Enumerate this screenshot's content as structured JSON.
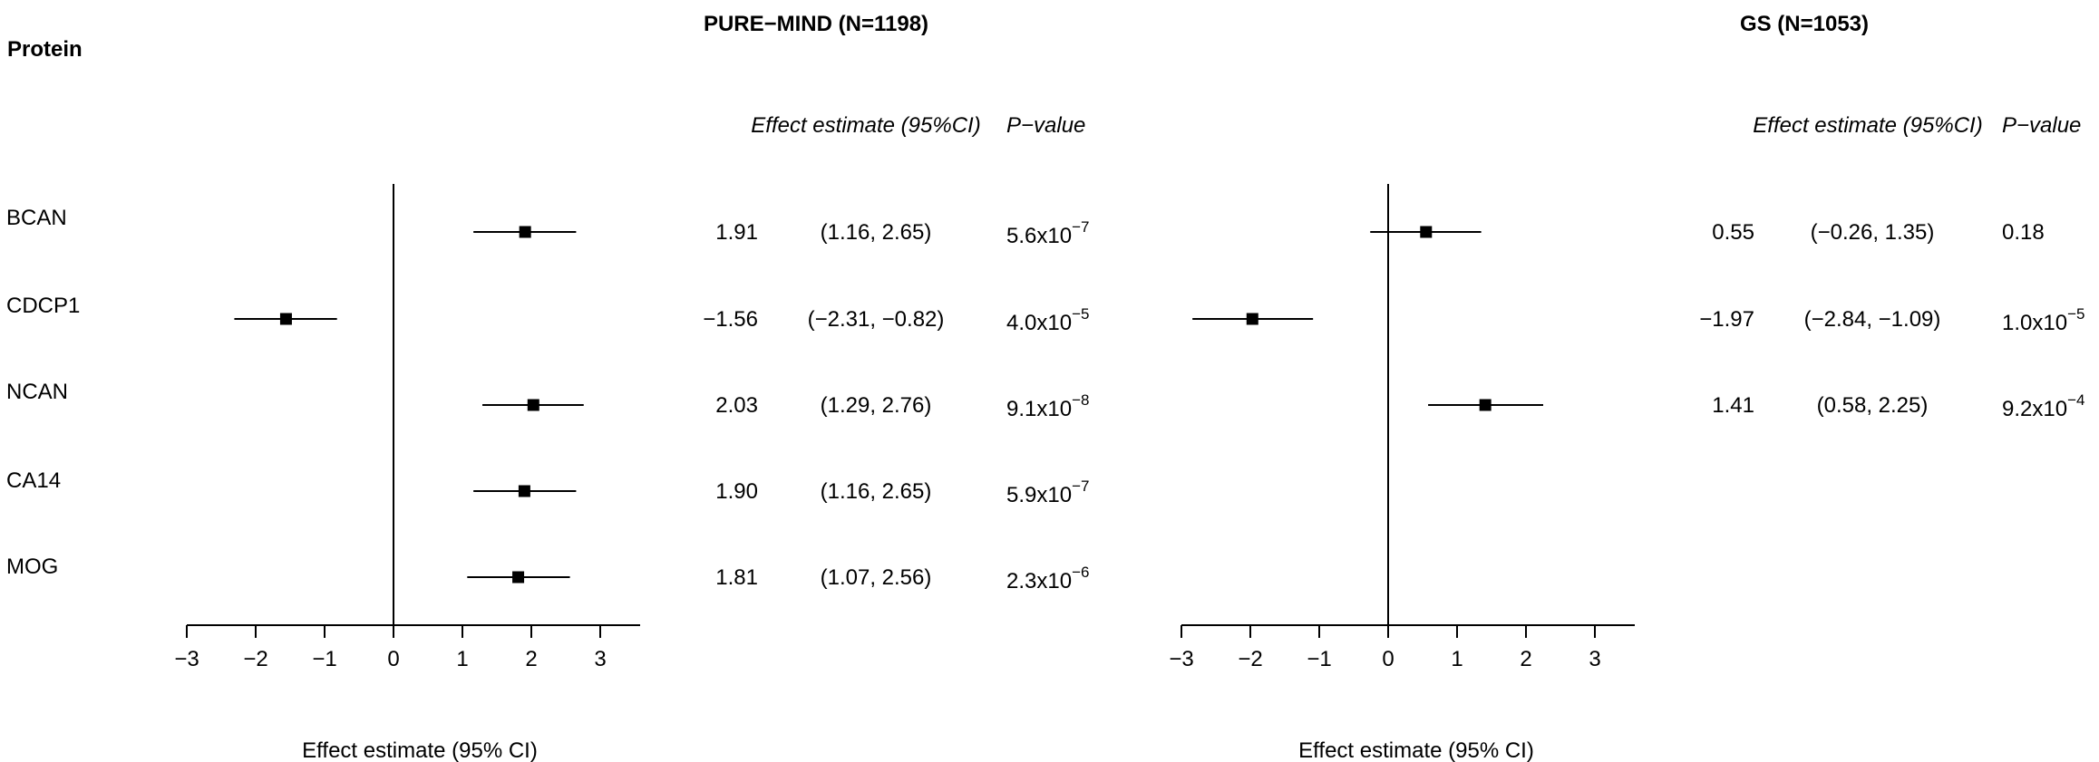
{
  "chart_data": {
    "type": "forest",
    "row_header": "Protein",
    "proteins": [
      "BCAN",
      "CDCP1",
      "NCAN",
      "CA14",
      "MOG"
    ],
    "xlim": [
      -3,
      3.5
    ],
    "ticks": [
      -3,
      -2,
      -1,
      0,
      1,
      2,
      3
    ],
    "tick_labels": [
      "−3",
      "−2",
      "−1",
      "0",
      "1",
      "2",
      "3"
    ],
    "reference_line": 0,
    "panels": [
      {
        "title": "PURE−MIND (N=1198)",
        "est_header": "Effect estimate (95%CI)",
        "p_header": "P−value",
        "xlabel": "Effect estimate (95% CI)",
        "rows": [
          {
            "protein": "BCAN",
            "est": 1.91,
            "lo": 1.16,
            "hi": 2.65,
            "est_text": "1.91",
            "ci_text": "(1.16, 2.65)",
            "p_mant": "5.6x10",
            "p_exp": "−7"
          },
          {
            "protein": "CDCP1",
            "est": -1.56,
            "lo": -2.31,
            "hi": -0.82,
            "est_text": "−1.56",
            "ci_text": "(−2.31, −0.82)",
            "p_mant": "4.0x10",
            "p_exp": "−5"
          },
          {
            "protein": "NCAN",
            "est": 2.03,
            "lo": 1.29,
            "hi": 2.76,
            "est_text": "2.03",
            "ci_text": "(1.29, 2.76)",
            "p_mant": "9.1x10",
            "p_exp": "−8"
          },
          {
            "protein": "CA14",
            "est": 1.9,
            "lo": 1.16,
            "hi": 2.65,
            "est_text": "1.90",
            "ci_text": "(1.16, 2.65)",
            "p_mant": "5.9x10",
            "p_exp": "−7"
          },
          {
            "protein": "MOG",
            "est": 1.81,
            "lo": 1.07,
            "hi": 2.56,
            "est_text": "1.81",
            "ci_text": "(1.07, 2.56)",
            "p_mant": "2.3x10",
            "p_exp": "−6"
          }
        ]
      },
      {
        "title": "GS (N=1053)",
        "est_header": "Effect estimate (95%CI)",
        "p_header": "P−value",
        "xlabel": "Effect estimate (95% CI)",
        "rows": [
          {
            "protein": "BCAN",
            "est": 0.55,
            "lo": -0.26,
            "hi": 1.35,
            "est_text": "0.55",
            "ci_text": "(−0.26, 1.35)",
            "p_mant": "0.18",
            "p_exp": ""
          },
          {
            "protein": "CDCP1",
            "est": -1.97,
            "lo": -2.84,
            "hi": -1.09,
            "est_text": "−1.97",
            "ci_text": "(−2.84, −1.09)",
            "p_mant": "1.0x10",
            "p_exp": "−5"
          },
          {
            "protein": "NCAN",
            "est": 1.41,
            "lo": 0.58,
            "hi": 2.25,
            "est_text": "1.41",
            "ci_text": "(0.58, 2.25)",
            "p_mant": "9.2x10",
            "p_exp": "−4"
          }
        ]
      }
    ]
  }
}
